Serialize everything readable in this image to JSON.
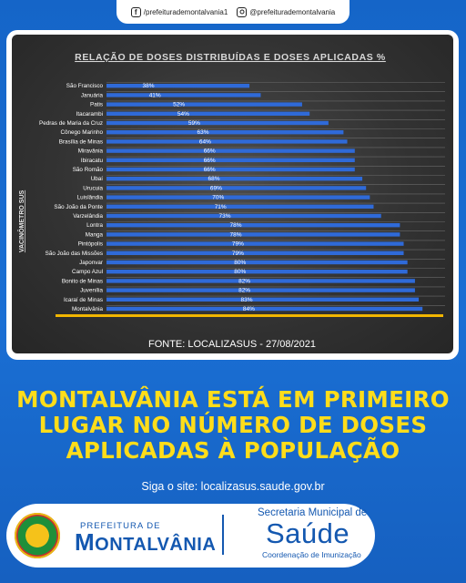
{
  "social": {
    "facebook_icon": "facebook-icon",
    "facebook": "/prefeiturademontalvania1",
    "instagram_icon": "instagram-icon",
    "instagram": "@prefeiturademontalvania"
  },
  "chart_data": {
    "type": "bar",
    "orientation": "horizontal",
    "title": "RELAÇÃO DE DOSES DISTRIBUÍDAS E DOSES APLICADAS %",
    "ylabel": "VACINÔMETRO SUS",
    "source": "FONTE: LOCALIZASUS - 27/08/2021",
    "xlim": [
      0,
      90
    ],
    "grid": true,
    "colors": {
      "bar": "#2f6ad8",
      "highlight": "#f2b600",
      "background": "#333333"
    },
    "categories": [
      "São Francisco",
      "Januária",
      "Patis",
      "Itacarambi",
      "Pedras de Maria da Cruz",
      "Cônego Marinho",
      "Brasília de Minas",
      "Miravânia",
      "Ibiracatu",
      "São Romão",
      "Ubaí",
      "Urucuia",
      "Luislândia",
      "São João da Ponte",
      "Varzelândia",
      "Lontra",
      "Manga",
      "Pintópolis",
      "São João das Missões",
      "Japonvar",
      "Campo Azul",
      "Bonito de Minas",
      "Juvenília",
      "Icaraí de Minas",
      "Montalvânia"
    ],
    "values": [
      38,
      41,
      52,
      54,
      59,
      63,
      64,
      66,
      66,
      66,
      68,
      69,
      70,
      71,
      73,
      78,
      78,
      79,
      79,
      80,
      80,
      82,
      82,
      83,
      84
    ],
    "labels": [
      "38%",
      "41%",
      "52%",
      "54%",
      "59%",
      "63%",
      "64%",
      "66%",
      "66%",
      "66%",
      "68%",
      "69%",
      "70%",
      "71%",
      "73%",
      "78%",
      "78%",
      "79%",
      "79%",
      "80%",
      "80%",
      "82%",
      "82%",
      "83%",
      "84%"
    ]
  },
  "headline": {
    "line1": "MONTALVÂNIA ESTÁ EM PRIMEIRO",
    "line2": "LUGAR NO NÚMERO DE DOSES",
    "line3": "APLICADAS À POPULAÇÃO"
  },
  "site_text": "Siga o site: localizasus.saude.gov.br",
  "footer": {
    "prefeitura_small": "PREFEITURA DE",
    "prefeitura_big_first": "M",
    "prefeitura_big_rest": "ONTALVÂNIA",
    "secretaria": "Secretaria Municipal de",
    "saude": "Saúde",
    "coordenacao": "Coordenação de Imunização"
  }
}
